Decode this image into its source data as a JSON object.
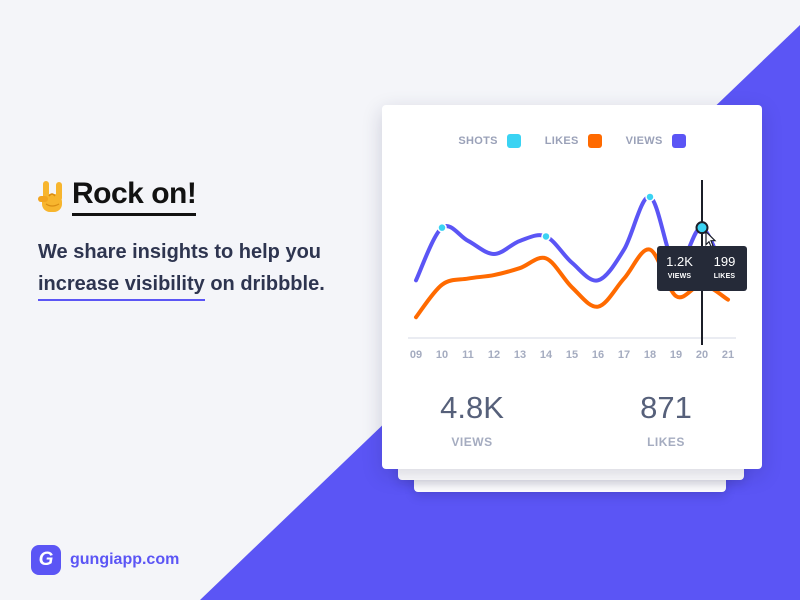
{
  "headline": "Rock on!",
  "subline_1": "We share insights to help you",
  "subline_2_highlight": "increase visibility",
  "subline_2_rest": "on dribbble.",
  "brand": {
    "logo_letter": "G",
    "name": "gungiapp.com"
  },
  "colors": {
    "shots": "#3ad3f3",
    "likes": "#ff6a00",
    "views": "#5b55f5",
    "background": "#f4f5f9",
    "tooltip_bg": "#252a38"
  },
  "tooltip": {
    "views_value": "1.2K",
    "views_label": "VIEWS",
    "likes_value": "199",
    "likes_label": "LIKES"
  },
  "stats": {
    "views_value": "4.8K",
    "views_label": "VIEWS",
    "likes_value": "871",
    "likes_label": "LIKES"
  },
  "chart_data": {
    "type": "line",
    "title": "",
    "xlabel": "",
    "ylabel": "",
    "x": [
      "09",
      "10",
      "11",
      "12",
      "13",
      "14",
      "15",
      "16",
      "17",
      "18",
      "19",
      "20",
      "21"
    ],
    "legend": [
      {
        "name": "SHOTS",
        "color": "#3ad3f3"
      },
      {
        "name": "LIKES",
        "color": "#ff6a00"
      },
      {
        "name": "VIEWS",
        "color": "#5b55f5"
      }
    ],
    "series": [
      {
        "name": "VIEWS",
        "color": "#5b55f5",
        "values": [
          0.6,
          1.2,
          1.05,
          0.9,
          1.05,
          1.1,
          0.8,
          0.6,
          0.95,
          1.55,
          0.75,
          1.2,
          0.55
        ]
      },
      {
        "name": "LIKES",
        "color": "#ff6a00",
        "values": [
          0.18,
          0.55,
          0.62,
          0.66,
          0.74,
          0.85,
          0.52,
          0.3,
          0.62,
          0.95,
          0.42,
          0.55,
          0.38
        ]
      }
    ],
    "shot_markers": [
      "10",
      "14",
      "18",
      "20"
    ],
    "highlighted_x": "20",
    "ylim": [
      0,
      1.8
    ],
    "grid": false,
    "legend_position": "top-center"
  }
}
